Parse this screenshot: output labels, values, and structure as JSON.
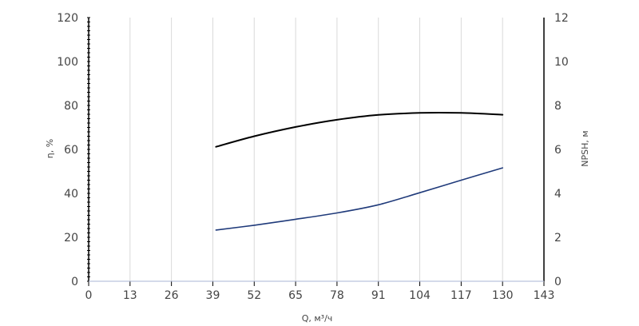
{
  "chart_data": {
    "type": "line",
    "xlabel": "Q, м³/ч",
    "ylabel_left": "η, %",
    "ylabel_right": "NPSH, м",
    "xlim": [
      0,
      143
    ],
    "ylim_left": [
      0,
      120
    ],
    "ylim_right": [
      0,
      12
    ],
    "x_ticks": [
      "0",
      "13",
      "26",
      "39",
      "52",
      "65",
      "78",
      "91",
      "104",
      "117",
      "130",
      "143"
    ],
    "y_left_ticks": [
      "0",
      "20",
      "40",
      "60",
      "80",
      "100",
      "120"
    ],
    "y_right_ticks": [
      "0",
      "2",
      "4",
      "6",
      "8",
      "10",
      "12"
    ],
    "grid": "vertical",
    "series": [
      {
        "axis": "left",
        "color": "#000000",
        "x": [
          40,
          52,
          65,
          78,
          91,
          104,
          117,
          130
        ],
        "y": [
          61.2,
          66.0,
          70.2,
          73.5,
          75.7,
          76.6,
          76.6,
          75.8
        ]
      },
      {
        "axis": "right",
        "color": "#1f3a7a",
        "x": [
          40,
          52,
          65,
          78,
          91,
          104,
          117,
          130
        ],
        "y": [
          2.33,
          2.55,
          2.82,
          3.11,
          3.48,
          4.03,
          4.6,
          5.16
        ]
      }
    ]
  }
}
